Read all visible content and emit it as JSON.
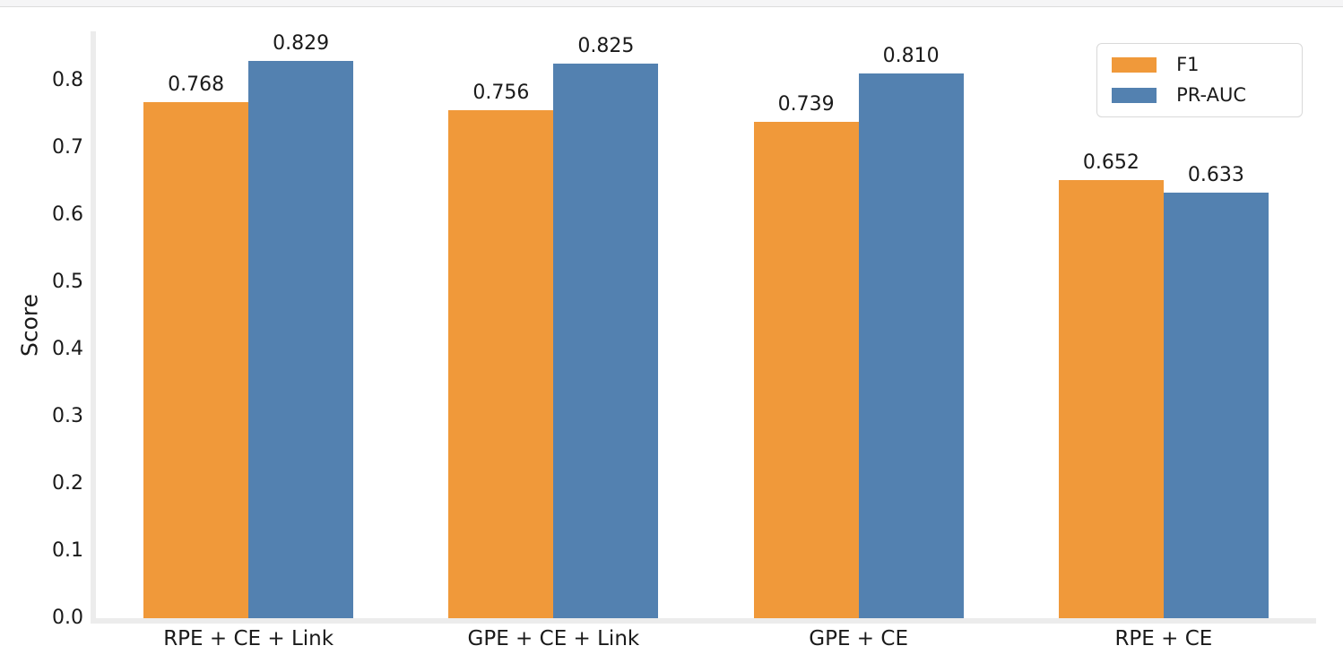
{
  "chart_data": {
    "type": "bar",
    "categories": [
      "RPE + CE + Link",
      "GPE + CE + Link",
      "GPE + CE",
      "RPE + CE"
    ],
    "series": [
      {
        "name": "F1",
        "color": "#F0993A",
        "values": [
          0.768,
          0.756,
          0.739,
          0.652
        ]
      },
      {
        "name": "PR-AUC",
        "color": "#5381B0",
        "values": [
          0.829,
          0.825,
          0.81,
          0.633
        ]
      }
    ],
    "title": "",
    "xlabel": "",
    "ylabel": "Score",
    "ylim": [
      0.0,
      0.8733
    ],
    "yticks": [
      0.0,
      0.1,
      0.2,
      0.3,
      0.4,
      0.5,
      0.6,
      0.7,
      0.8
    ],
    "grid": false,
    "legend_position": "upper right",
    "value_label_decimals": 3,
    "spine_color": "#ececec"
  }
}
